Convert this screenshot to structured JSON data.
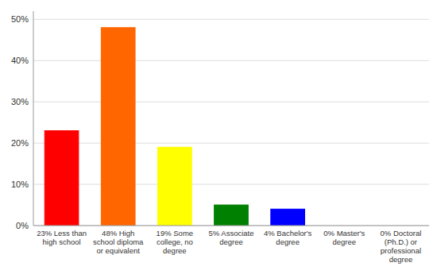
{
  "chart_data": {
    "type": "bar",
    "categories": [
      "23% Less than\nhigh school",
      "48% High\nschool diploma\nor equivalent",
      "19% Some\ncollege, no\ndegree",
      "5% Associate\ndegree",
      "4% Bachelor's\ndegree",
      "0% Master's\ndegree",
      "0% Doctoral\n(Ph.D.) or\nprofessional\ndegree"
    ],
    "values": [
      23,
      48,
      19,
      5,
      4,
      0,
      0
    ],
    "colors": [
      "#ff0000",
      "#ff6600",
      "#ffff00",
      "#008000",
      "#0000ff",
      "#800080",
      "#ff00ff"
    ],
    "ylim": [
      0,
      52
    ],
    "yticks": [
      {
        "value": 0,
        "label": "0%"
      },
      {
        "value": 10,
        "label": "10%"
      },
      {
        "value": 20,
        "label": "20%"
      },
      {
        "value": 30,
        "label": "30%"
      },
      {
        "value": 40,
        "label": "40%"
      },
      {
        "value": 50,
        "label": "50%"
      }
    ],
    "grid": true
  }
}
